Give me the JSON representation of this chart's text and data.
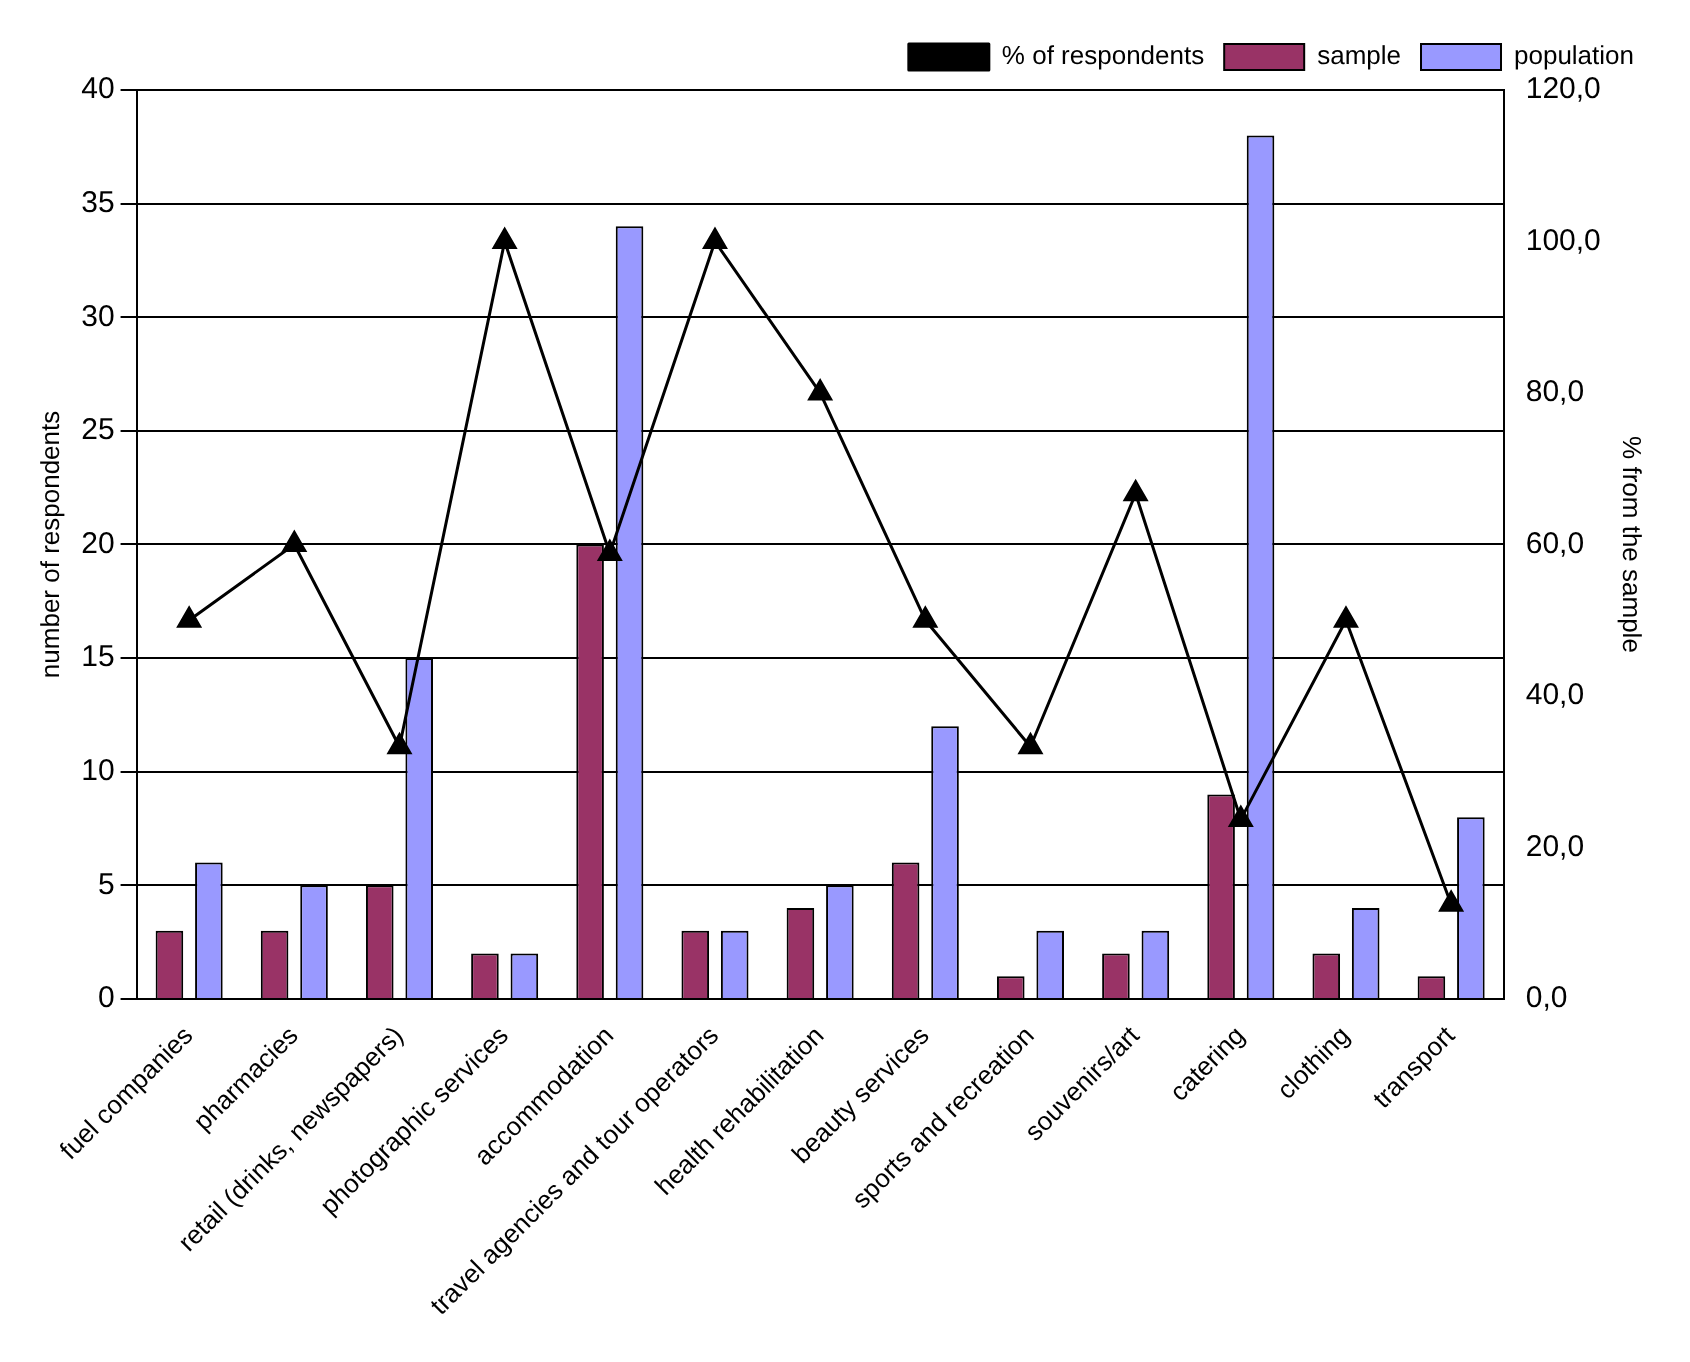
{
  "chart_data": {
    "type": "bar",
    "categories": [
      "fuel companies",
      "pharmacies",
      "retail (drinks, newspapers)",
      "photographic services",
      "accommodation",
      "travel agencies and tour operators",
      "health rehabilitation",
      "beauty services",
      "sports and recreation",
      "souvenirs/art",
      "catering",
      "clothing",
      "transport"
    ],
    "series": [
      {
        "name": "sample",
        "color": "#993366",
        "values": [
          3,
          3,
          5,
          2,
          20,
          3,
          4,
          6,
          1,
          2,
          9,
          2,
          1
        ]
      },
      {
        "name": "population",
        "color": "#9999ff",
        "values": [
          6,
          5,
          15,
          2,
          34,
          3,
          5,
          12,
          3,
          3,
          38,
          4,
          8
        ]
      },
      {
        "name": "% of respondents",
        "type": "line",
        "axis": "y2",
        "color": "#000000",
        "values": [
          50,
          60,
          33.3,
          100,
          58.8,
          100,
          80,
          50,
          33.3,
          66.7,
          23.7,
          50,
          12.5
        ]
      }
    ],
    "ylabel": "number of respondents",
    "y2label": "% from the sample",
    "ylim": [
      0,
      40
    ],
    "yticks": [
      0,
      5,
      10,
      15,
      20,
      25,
      30,
      35,
      40
    ],
    "y2lim": [
      0,
      120
    ],
    "y2ticks": [
      {
        "value": 0,
        "label": "0,0"
      },
      {
        "value": 20,
        "label": "20,0"
      },
      {
        "value": 40,
        "label": "40,0"
      },
      {
        "value": 60,
        "label": "60,0"
      },
      {
        "value": 80,
        "label": "80,0"
      },
      {
        "value": 100,
        "label": "100,0"
      },
      {
        "value": 120,
        "label": "120,0"
      }
    ],
    "grid": "y",
    "legend": "top right",
    "marker": "triangle",
    "line_style": "solid"
  }
}
